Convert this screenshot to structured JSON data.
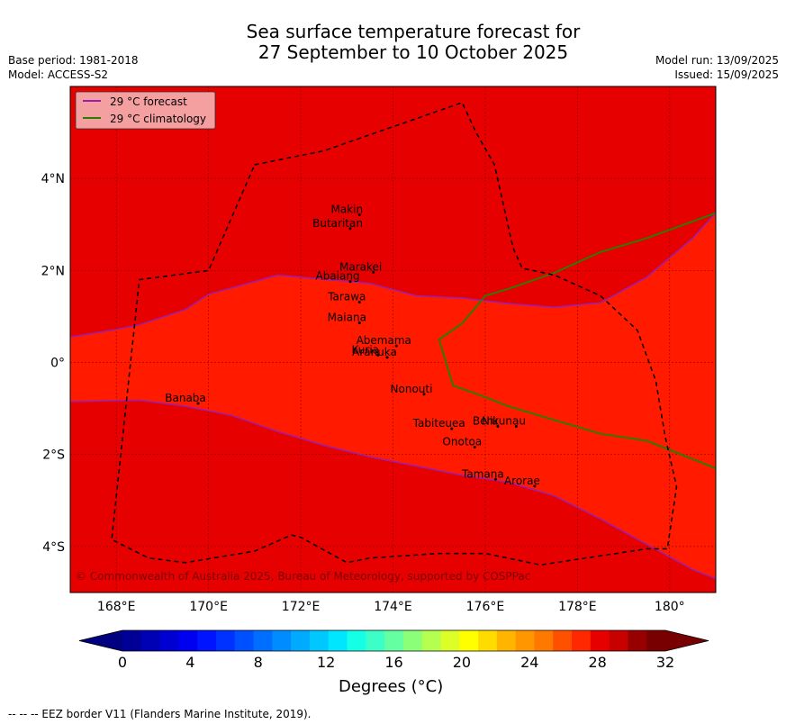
{
  "title": {
    "line1": "Sea surface temperature forecast for",
    "line2": "27 September to 10 October 2025"
  },
  "meta": {
    "base_period": "Base period: 1981-2018",
    "model": "Model: ACCESS-S2",
    "model_run": "Model run: 13/09/2025",
    "issued": "Issued: 15/09/2025"
  },
  "map": {
    "background_color": "#e60000",
    "band_color": "#ff1a00",
    "lat_labels": [
      "4°N",
      "2°N",
      "0°",
      "2°S",
      "4°S"
    ],
    "lon_labels": [
      "168°E",
      "170°E",
      "172°E",
      "174°E",
      "176°E",
      "178°E",
      "180°"
    ],
    "places": [
      {
        "name": "Makin",
        "lon": 173.0,
        "lat": 3.25
      },
      {
        "name": "Butaritan",
        "lon": 172.8,
        "lat": 2.95
      },
      {
        "name": "Marakei",
        "lon": 173.3,
        "lat": 2.0
      },
      {
        "name": "Abaiang",
        "lon": 172.8,
        "lat": 1.8
      },
      {
        "name": "Tarawa",
        "lon": 173.0,
        "lat": 1.35
      },
      {
        "name": "Maiana",
        "lon": 173.0,
        "lat": 0.9
      },
      {
        "name": "Abemama",
        "lon": 173.8,
        "lat": 0.4
      },
      {
        "name": "Kuria",
        "lon": 173.4,
        "lat": 0.2
      },
      {
        "name": "Aranuka",
        "lon": 173.6,
        "lat": 0.15
      },
      {
        "name": "Nonouti",
        "lon": 174.4,
        "lat": -0.65
      },
      {
        "name": "Banaba",
        "lon": 169.5,
        "lat": -0.85
      },
      {
        "name": "Beru",
        "lon": 176.0,
        "lat": -1.35
      },
      {
        "name": "Tabiteuea",
        "lon": 175.0,
        "lat": -1.4
      },
      {
        "name": "Nikunau",
        "lon": 176.4,
        "lat": -1.35
      },
      {
        "name": "Onotoa",
        "lon": 175.5,
        "lat": -1.8
      },
      {
        "name": "Tamana",
        "lon": 175.95,
        "lat": -2.5
      },
      {
        "name": "Arorae",
        "lon": 176.8,
        "lat": -2.65
      }
    ],
    "legend": {
      "forecast": "29 °C  forecast",
      "climatology": "29 °C  climatology",
      "forecast_color": "#9b1fb0",
      "climatology_color": "#2f7a00"
    },
    "copyright": "© Commonwealth of Australia 2025, Bureau of Meteorology, supported by COSPPac"
  },
  "colorbar": {
    "colors": [
      "#000096",
      "#0000b4",
      "#0000d2",
      "#0000f0",
      "#0014ff",
      "#0032ff",
      "#0050ff",
      "#006eff",
      "#008cff",
      "#00aaff",
      "#00c8ff",
      "#00e6ff",
      "#14ffe6",
      "#3cffc8",
      "#64ffa0",
      "#8cff78",
      "#b4ff50",
      "#dcff28",
      "#ffff00",
      "#ffdc00",
      "#ffb400",
      "#ff9600",
      "#ff7800",
      "#ff5000",
      "#ff2800",
      "#e60000",
      "#c80000",
      "#960000",
      "#780000"
    ],
    "under_color": "#000080",
    "over_color": "#780000",
    "ticks": [
      "0",
      "4",
      "8",
      "12",
      "16",
      "20",
      "24",
      "28",
      "32"
    ],
    "label": "Degrees (°C)"
  },
  "footer": "--  --  -- EEZ border V11 (Flanders Marine Institute, 2019)."
}
